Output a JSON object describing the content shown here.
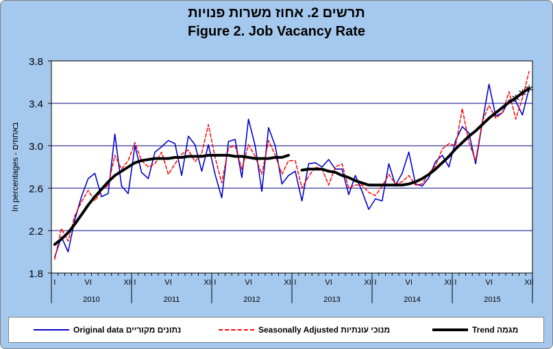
{
  "title_he": "תרשים 2. אחוז משרות פנויות",
  "title_en": "Figure 2. Job Vacancy Rate",
  "chart_data": {
    "type": "line",
    "ylabel": "In percentages - באחוזים",
    "ylim": [
      1.8,
      3.8
    ],
    "yticks": [
      "1.8",
      "2.2",
      "2.6",
      "3.0",
      "3.4",
      "3.8"
    ],
    "grid": true,
    "legend_position": "bottom",
    "years": [
      "2010",
      "2011",
      "2012",
      "2013",
      "2014",
      "2015"
    ],
    "month_tick_labels": [
      "I",
      "VI",
      "XII"
    ],
    "x_start": "2010-01",
    "series": [
      {
        "name": "Original data  נתונים מקוריים",
        "color": "#0000cc",
        "values": [
          1.95,
          2.14,
          2.0,
          2.3,
          2.52,
          2.69,
          2.74,
          2.52,
          2.55,
          3.11,
          2.62,
          2.55,
          3.0,
          2.75,
          2.69,
          2.94,
          2.99,
          3.05,
          3.02,
          2.72,
          3.09,
          3.01,
          2.76,
          3.01,
          2.73,
          2.51,
          3.04,
          3.06,
          2.7,
          3.25,
          3.0,
          2.57,
          3.17,
          3.0,
          2.64,
          2.72,
          2.76,
          2.48,
          2.83,
          2.84,
          2.8,
          2.87,
          2.78,
          2.78,
          2.54,
          2.72,
          2.57,
          2.4,
          2.5,
          2.48,
          2.83,
          2.63,
          2.74,
          2.94,
          2.64,
          2.62,
          2.7,
          2.85,
          2.91,
          2.8,
          3.05,
          3.18,
          3.12,
          2.83,
          3.22,
          3.58,
          3.28,
          3.31,
          3.43,
          3.42,
          3.29,
          3.54
        ]
      },
      {
        "name": "Seasonally Adjusted מנוכי עונתיות",
        "color": "#ff0000",
        "values": [
          1.93,
          2.22,
          2.1,
          2.34,
          2.47,
          2.58,
          2.48,
          2.58,
          2.63,
          2.91,
          2.78,
          2.86,
          3.03,
          2.86,
          2.8,
          2.83,
          2.94,
          2.73,
          2.83,
          2.92,
          2.96,
          2.85,
          2.93,
          3.2,
          2.89,
          2.65,
          2.98,
          3.0,
          2.78,
          3.01,
          2.9,
          2.73,
          3.05,
          2.91,
          2.73,
          2.86,
          2.86,
          2.6,
          2.71,
          2.8,
          2.78,
          2.63,
          2.8,
          2.83,
          2.6,
          2.63,
          2.63,
          2.56,
          2.53,
          2.62,
          2.73,
          2.64,
          2.66,
          2.72,
          2.63,
          2.64,
          2.74,
          2.81,
          2.97,
          3.02,
          3.0,
          3.35,
          3.03,
          2.86,
          3.23,
          3.38,
          3.26,
          3.31,
          3.51,
          3.25,
          3.45,
          3.7
        ]
      },
      {
        "name": "Trend  מגמה",
        "color": "#000000",
        "values": [
          2.07,
          2.12,
          2.18,
          2.26,
          2.35,
          2.44,
          2.52,
          2.59,
          2.66,
          2.72,
          2.76,
          2.8,
          2.84,
          2.86,
          2.87,
          2.88,
          2.88,
          2.88,
          2.89,
          2.89,
          2.9,
          2.9,
          2.9,
          2.91,
          2.91,
          2.91,
          2.91,
          2.9,
          2.9,
          2.89,
          2.88,
          2.88,
          2.88,
          2.89,
          2.89,
          2.91,
          null,
          2.77,
          2.78,
          2.78,
          2.78,
          2.76,
          2.75,
          2.72,
          2.7,
          2.67,
          2.65,
          2.63,
          2.63,
          2.63,
          2.63,
          2.63,
          2.63,
          2.64,
          2.66,
          2.69,
          2.73,
          2.78,
          2.84,
          2.9,
          2.97,
          3.03,
          3.09,
          3.14,
          3.2,
          3.26,
          3.31,
          3.36,
          3.41,
          3.45,
          3.5,
          3.54
        ]
      }
    ],
    "trend_star_markers_from_index": 69
  }
}
